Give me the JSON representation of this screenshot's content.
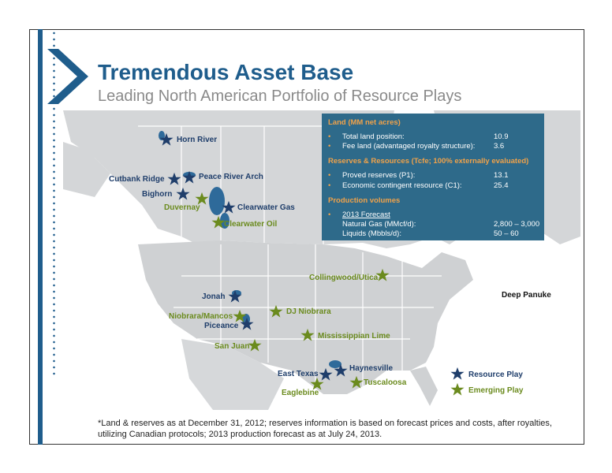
{
  "title": "Tremendous Asset Base",
  "subtitle": "Leading North American Portfolio of Resource Plays",
  "infobox": {
    "land_heading": "Land (MM net acres)",
    "land_rows": [
      {
        "label": "Total land position:",
        "value": "10.9"
      },
      {
        "label": "Fee land (advantaged royalty structure):",
        "value": "3.6"
      }
    ],
    "reserves_heading": "Reserves & Resources (Tcfe; 100% externally evaluated)",
    "reserves_rows": [
      {
        "label": "Proved reserves (P1):",
        "value": "13.1"
      },
      {
        "label": "Economic contingent resource (C1):",
        "value": "25.4"
      }
    ],
    "production_heading": "Production volumes",
    "forecast_label": "2013 Forecast",
    "production_rows": [
      {
        "label": "Natural Gas (MMcf/d):",
        "value": "2,800 – 3,000"
      },
      {
        "label": "Liquids (Mbbls/d):",
        "value": "50 – 60"
      }
    ]
  },
  "plays": {
    "horn_river": "Horn River",
    "cutbank_ridge": "Cutbank Ridge",
    "peace_river_arch": "Peace River Arch",
    "bighorn": "Bighorn",
    "duvernay": "Duvernay",
    "clearwater_gas": "Clearwater Gas",
    "clearwater_oil": "Clearwater Oil",
    "collingwood_utica": "Collingwood/Utica",
    "deep_panuke": "Deep Panuke",
    "jonah": "Jonah",
    "niobrara_mancos": "Niobrara/Mancos",
    "dj_niobrara": "DJ Niobrara",
    "piceance": "Piceance",
    "mississippian_lime": "Mississippian Lime",
    "san_juan": "San Juan",
    "haynesville": "Haynesville",
    "east_texas": "East Texas",
    "tuscaloosa": "Tuscaloosa",
    "eaglebine": "Eaglebine"
  },
  "legend": {
    "resource": "Resource Play",
    "emerging": "Emerging Play"
  },
  "colors": {
    "resource_star": "#1f3e6b",
    "emerging_star": "#6b8b1e",
    "infobox_bg": "#2e6a8a",
    "heading_orange": "#f0a24a",
    "title_blue": "#1f5d8c"
  },
  "footnote": "*Land & reserves as at December 31, 2012; reserves information is based on forecast prices and costs, after royalties, utilizing Canadian protocols; 2013 production forecast as at July 24, 2013."
}
